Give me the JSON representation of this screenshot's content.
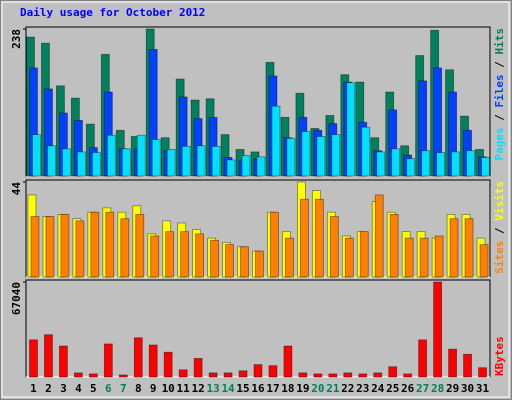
{
  "chart_data": [
    {
      "type": "bar",
      "title": "Daily usage for October 2012",
      "ylim": [
        0,
        238
      ],
      "yticks": [
        238
      ],
      "legend_separator": " / ",
      "series": [
        {
          "name": "Hits",
          "color": "#00805c",
          "values": [
            225,
            215,
            146,
            126,
            84,
            197,
            74,
            64,
            238,
            62,
            157,
            123,
            125,
            67,
            43,
            39,
            184,
            95,
            134,
            77,
            98,
            164,
            152,
            62,
            136,
            49,
            195,
            236,
            172,
            97,
            43
          ]
        },
        {
          "name": "Files",
          "color": "#0040ff",
          "values": [
            175,
            141,
            102,
            90,
            46,
            136,
            44,
            44,
            205,
            41,
            128,
            93,
            95,
            30,
            25,
            28,
            162,
            62,
            95,
            74,
            85,
            152,
            87,
            41,
            107,
            34,
            154,
            175,
            136,
            74,
            31
          ]
        },
        {
          "name": "Pages",
          "color": "#00e0ff",
          "values": [
            67,
            49,
            44,
            39,
            38,
            66,
            44,
            66,
            59,
            43,
            48,
            49,
            48,
            26,
            33,
            31,
            113,
            61,
            72,
            64,
            67,
            151,
            79,
            39,
            44,
            28,
            41,
            38,
            39,
            41,
            30
          ]
        }
      ]
    },
    {
      "type": "bar",
      "ylim": [
        0,
        44
      ],
      "yticks": [
        44
      ],
      "legend_separator": " / ",
      "series": [
        {
          "name": "Visits",
          "color": "#ffff00",
          "values": [
            38,
            28,
            29,
            27,
            30,
            32,
            30,
            33,
            20,
            26,
            25,
            22,
            18,
            16,
            14,
            12,
            30,
            21,
            44,
            40,
            30,
            19,
            21,
            35,
            30,
            21,
            21,
            18,
            29,
            29,
            18
          ]
        },
        {
          "name": "Sites",
          "color": "#ff8000",
          "values": [
            28,
            28,
            29,
            26,
            30,
            30,
            27,
            29,
            19,
            21,
            21,
            20,
            17,
            15,
            14,
            12,
            30,
            18,
            36,
            36,
            28,
            18,
            21,
            38,
            29,
            18,
            18,
            19,
            27,
            27,
            15
          ]
        }
      ]
    },
    {
      "type": "bar",
      "ylim": [
        0,
        67040
      ],
      "yticks": [
        67040
      ],
      "categories": [
        "1",
        "2",
        "3",
        "4",
        "5",
        "6",
        "7",
        "8",
        "9",
        "10",
        "11",
        "12",
        "13",
        "14",
        "15",
        "16",
        "17",
        "18",
        "19",
        "20",
        "21",
        "22",
        "23",
        "24",
        "25",
        "26",
        "27",
        "28",
        "29",
        "30",
        "31"
      ],
      "highlight": [
        "6",
        "7",
        "13",
        "14",
        "20",
        "21",
        "27",
        "28"
      ],
      "highlight_color": "#00805c",
      "series": [
        {
          "name": "KBytes",
          "color": "#ff0000",
          "values": [
            26233,
            29877,
            21861,
            2915,
            2186,
            23318,
            1457,
            27690,
            22590,
            17489,
            5101,
            13117,
            2915,
            2915,
            4372,
            8744,
            8016,
            21861,
            2915,
            2186,
            2186,
            2915,
            2186,
            2915,
            7287,
            2186,
            26233,
            67040,
            19675,
            16031,
            6558
          ]
        }
      ]
    }
  ]
}
